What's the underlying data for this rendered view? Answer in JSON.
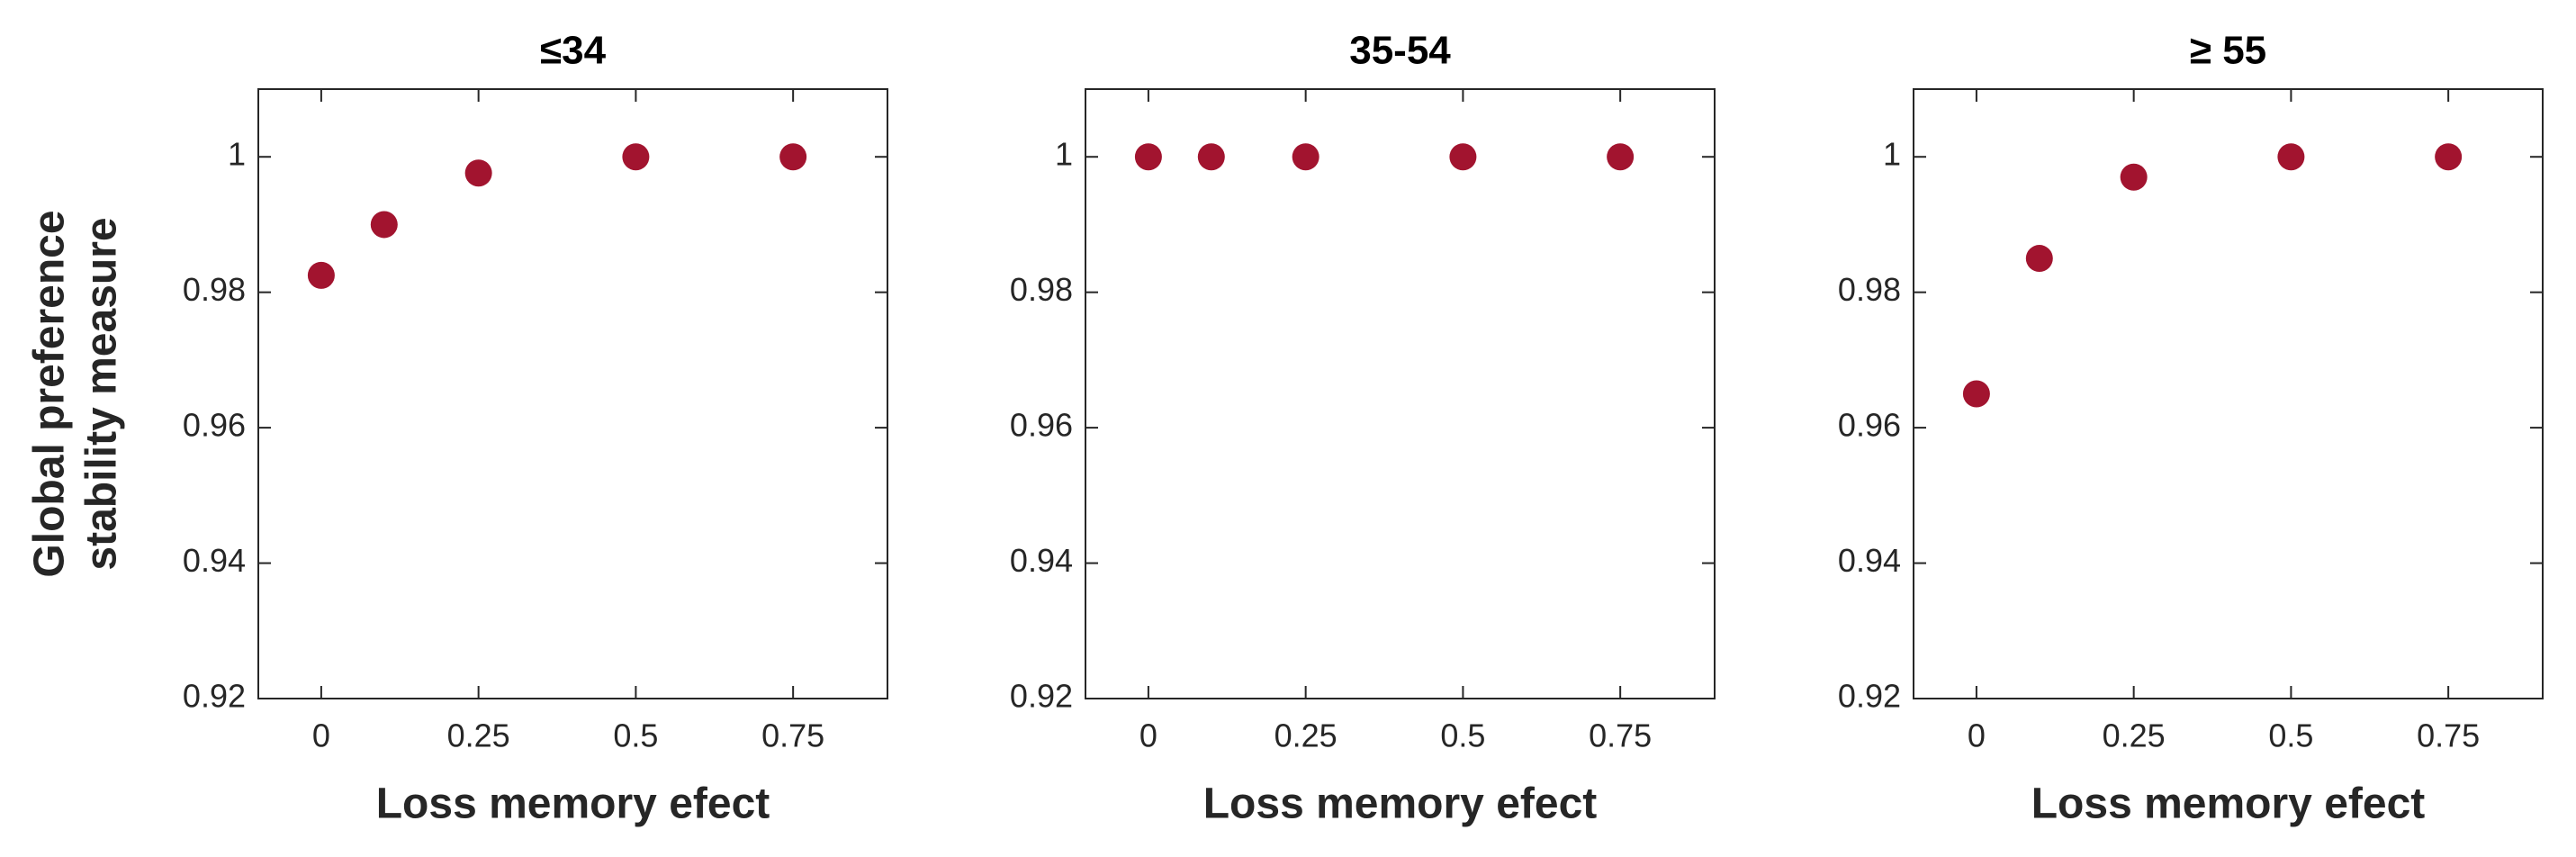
{
  "chart_data": [
    {
      "type": "scatter",
      "title": "≤34",
      "xlabel": "Loss memory efect",
      "ylabel": [
        "Global preference",
        "stability measure"
      ],
      "x": [
        0,
        0.1,
        0.25,
        0.5,
        0.75
      ],
      "values": [
        0.9825,
        0.99,
        0.9976,
        1,
        1
      ],
      "color": "#a2142f",
      "xlim": [
        -0.1,
        0.9
      ],
      "xticks": [
        0,
        0.25,
        0.5,
        0.75
      ],
      "ylim": [
        0.92,
        1.01
      ],
      "yticks": [
        0.92,
        0.94,
        0.96,
        0.98,
        1
      ]
    },
    {
      "type": "scatter",
      "title": "35-54",
      "xlabel": "Loss memory efect",
      "x": [
        0,
        0.1,
        0.25,
        0.5,
        0.75
      ],
      "values": [
        1,
        1,
        1,
        1,
        1
      ],
      "color": "#a2142f",
      "xlim": [
        -0.1,
        0.9
      ],
      "xticks": [
        0,
        0.25,
        0.5,
        0.75
      ],
      "ylim": [
        0.92,
        1.01
      ],
      "yticks": [
        0.92,
        0.94,
        0.96,
        0.98,
        1
      ]
    },
    {
      "type": "scatter",
      "title": "≥ 55",
      "xlabel": "Loss memory efect",
      "x": [
        0,
        0.1,
        0.25,
        0.5,
        0.75
      ],
      "values": [
        0.965,
        0.985,
        0.997,
        1,
        1
      ],
      "color": "#a2142f",
      "xlim": [
        -0.1,
        0.9
      ],
      "xticks": [
        0,
        0.25,
        0.5,
        0.75
      ],
      "ylim": [
        0.92,
        1.01
      ],
      "yticks": [
        0.92,
        0.94,
        0.96,
        0.98,
        1
      ]
    }
  ]
}
